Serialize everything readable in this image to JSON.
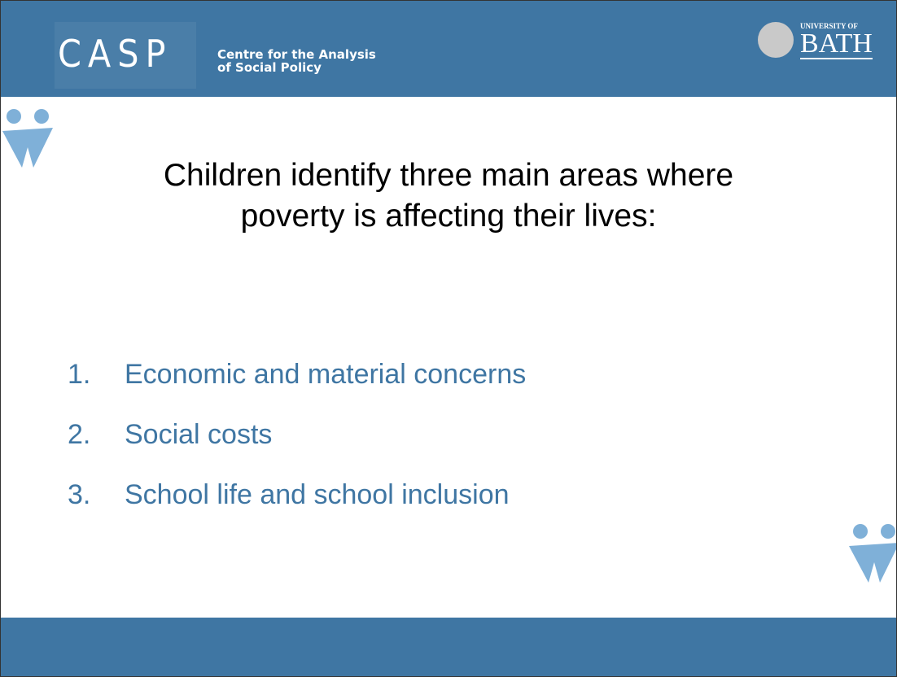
{
  "header": {
    "logo": "CASP",
    "logo_subtitle": [
      "Centre for the Analysis",
      "of Social Policy"
    ],
    "university_small": "UNIVERSITY OF",
    "university": "BATH"
  },
  "title": [
    "Children identify three main areas where",
    "poverty is affecting their lives:"
  ],
  "list": [
    {
      "number": "1.",
      "text": "Economic and material concerns"
    },
    {
      "number": "2.",
      "text": "Social costs"
    },
    {
      "number": "3.",
      "text": "School life and school inclusion"
    }
  ]
}
